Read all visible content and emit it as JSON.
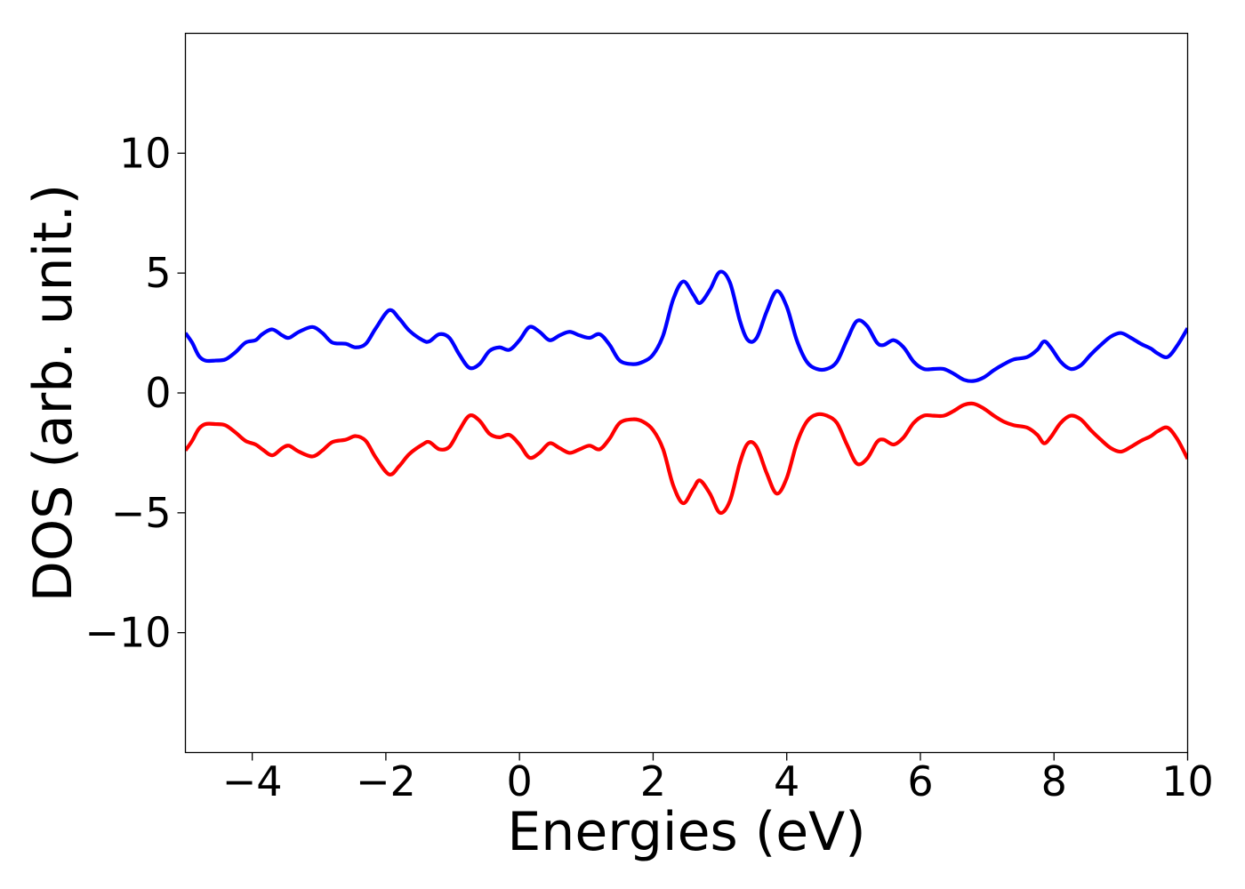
{
  "chart_data": {
    "type": "line",
    "title": "",
    "xlabel": "Energies (eV)",
    "ylabel": "DOS (arb. unit.)",
    "xlim": [
      -5,
      10
    ],
    "ylim": [
      -15,
      15
    ],
    "xticks": [
      -4,
      -2,
      0,
      2,
      4,
      6,
      8,
      10
    ],
    "yticks": [
      -10,
      -5,
      0,
      5,
      10
    ],
    "xtick_labels": [
      "−4",
      "−2",
      "0",
      "2",
      "4",
      "6",
      "8",
      "10"
    ],
    "ytick_labels": [
      "−10",
      "−5",
      "0",
      "5",
      "10"
    ],
    "grid": false,
    "legend": "none",
    "series": [
      {
        "color": "#0000ff",
        "points": [
          [
            -5.0,
            2.5
          ],
          [
            -4.9,
            2.1
          ],
          [
            -4.8,
            1.55
          ],
          [
            -4.7,
            1.35
          ],
          [
            -4.55,
            1.35
          ],
          [
            -4.4,
            1.4
          ],
          [
            -4.25,
            1.7
          ],
          [
            -4.1,
            2.1
          ],
          [
            -3.95,
            2.2
          ],
          [
            -3.85,
            2.45
          ],
          [
            -3.7,
            2.65
          ],
          [
            -3.55,
            2.4
          ],
          [
            -3.45,
            2.3
          ],
          [
            -3.3,
            2.55
          ],
          [
            -3.1,
            2.75
          ],
          [
            -2.95,
            2.5
          ],
          [
            -2.8,
            2.1
          ],
          [
            -2.6,
            2.05
          ],
          [
            -2.45,
            1.9
          ],
          [
            -2.3,
            2.05
          ],
          [
            -2.15,
            2.7
          ],
          [
            -1.95,
            3.45
          ],
          [
            -1.8,
            3.1
          ],
          [
            -1.65,
            2.6
          ],
          [
            -1.45,
            2.2
          ],
          [
            -1.35,
            2.15
          ],
          [
            -1.2,
            2.45
          ],
          [
            -1.05,
            2.3
          ],
          [
            -0.9,
            1.6
          ],
          [
            -0.75,
            1.05
          ],
          [
            -0.6,
            1.2
          ],
          [
            -0.45,
            1.75
          ],
          [
            -0.3,
            1.9
          ],
          [
            -0.15,
            1.8
          ],
          [
            0.0,
            2.2
          ],
          [
            0.15,
            2.75
          ],
          [
            0.3,
            2.55
          ],
          [
            0.45,
            2.2
          ],
          [
            0.6,
            2.4
          ],
          [
            0.75,
            2.55
          ],
          [
            0.9,
            2.4
          ],
          [
            1.05,
            2.3
          ],
          [
            1.2,
            2.45
          ],
          [
            1.35,
            2.0
          ],
          [
            1.5,
            1.35
          ],
          [
            1.7,
            1.2
          ],
          [
            1.85,
            1.3
          ],
          [
            2.0,
            1.6
          ],
          [
            2.15,
            2.4
          ],
          [
            2.3,
            3.9
          ],
          [
            2.45,
            4.65
          ],
          [
            2.6,
            4.1
          ],
          [
            2.7,
            3.75
          ],
          [
            2.85,
            4.3
          ],
          [
            3.0,
            5.05
          ],
          [
            3.15,
            4.6
          ],
          [
            3.3,
            3.0
          ],
          [
            3.42,
            2.2
          ],
          [
            3.55,
            2.3
          ],
          [
            3.7,
            3.4
          ],
          [
            3.85,
            4.25
          ],
          [
            4.0,
            3.6
          ],
          [
            4.15,
            2.2
          ],
          [
            4.3,
            1.3
          ],
          [
            4.45,
            1.0
          ],
          [
            4.6,
            1.0
          ],
          [
            4.75,
            1.3
          ],
          [
            4.9,
            2.2
          ],
          [
            5.05,
            3.0
          ],
          [
            5.2,
            2.8
          ],
          [
            5.35,
            2.1
          ],
          [
            5.45,
            2.0
          ],
          [
            5.6,
            2.2
          ],
          [
            5.75,
            1.9
          ],
          [
            5.9,
            1.3
          ],
          [
            6.05,
            1.0
          ],
          [
            6.2,
            1.0
          ],
          [
            6.35,
            1.0
          ],
          [
            6.5,
            0.8
          ],
          [
            6.65,
            0.55
          ],
          [
            6.8,
            0.5
          ],
          [
            6.95,
            0.65
          ],
          [
            7.1,
            0.95
          ],
          [
            7.25,
            1.2
          ],
          [
            7.4,
            1.4
          ],
          [
            7.6,
            1.5
          ],
          [
            7.75,
            1.8
          ],
          [
            7.85,
            2.15
          ],
          [
            7.95,
            1.9
          ],
          [
            8.1,
            1.3
          ],
          [
            8.25,
            1.0
          ],
          [
            8.4,
            1.15
          ],
          [
            8.55,
            1.6
          ],
          [
            8.7,
            2.0
          ],
          [
            8.85,
            2.35
          ],
          [
            9.0,
            2.5
          ],
          [
            9.15,
            2.3
          ],
          [
            9.3,
            2.05
          ],
          [
            9.45,
            1.85
          ],
          [
            9.55,
            1.65
          ],
          [
            9.7,
            1.5
          ],
          [
            9.85,
            2.0
          ],
          [
            10.0,
            2.7
          ]
        ]
      },
      {
        "color": "#ff0000",
        "points": [
          [
            -5.0,
            -2.4
          ],
          [
            -4.9,
            -2.0
          ],
          [
            -4.8,
            -1.5
          ],
          [
            -4.7,
            -1.3
          ],
          [
            -4.55,
            -1.3
          ],
          [
            -4.4,
            -1.35
          ],
          [
            -4.25,
            -1.65
          ],
          [
            -4.1,
            -2.0
          ],
          [
            -3.95,
            -2.15
          ],
          [
            -3.85,
            -2.35
          ],
          [
            -3.7,
            -2.6
          ],
          [
            -3.55,
            -2.3
          ],
          [
            -3.45,
            -2.2
          ],
          [
            -3.3,
            -2.45
          ],
          [
            -3.1,
            -2.65
          ],
          [
            -2.95,
            -2.4
          ],
          [
            -2.8,
            -2.05
          ],
          [
            -2.6,
            -1.95
          ],
          [
            -2.45,
            -1.8
          ],
          [
            -2.3,
            -2.0
          ],
          [
            -2.15,
            -2.7
          ],
          [
            -1.95,
            -3.4
          ],
          [
            -1.8,
            -3.05
          ],
          [
            -1.65,
            -2.55
          ],
          [
            -1.45,
            -2.15
          ],
          [
            -1.35,
            -2.05
          ],
          [
            -1.2,
            -2.35
          ],
          [
            -1.05,
            -2.25
          ],
          [
            -0.9,
            -1.55
          ],
          [
            -0.75,
            -0.95
          ],
          [
            -0.6,
            -1.15
          ],
          [
            -0.45,
            -1.7
          ],
          [
            -0.3,
            -1.85
          ],
          [
            -0.15,
            -1.75
          ],
          [
            0.0,
            -2.15
          ],
          [
            0.15,
            -2.7
          ],
          [
            0.3,
            -2.5
          ],
          [
            0.45,
            -2.1
          ],
          [
            0.6,
            -2.3
          ],
          [
            0.75,
            -2.5
          ],
          [
            0.9,
            -2.35
          ],
          [
            1.05,
            -2.2
          ],
          [
            1.2,
            -2.35
          ],
          [
            1.35,
            -1.9
          ],
          [
            1.5,
            -1.25
          ],
          [
            1.7,
            -1.1
          ],
          [
            1.85,
            -1.2
          ],
          [
            2.0,
            -1.55
          ],
          [
            2.15,
            -2.35
          ],
          [
            2.3,
            -3.85
          ],
          [
            2.45,
            -4.6
          ],
          [
            2.6,
            -4.0
          ],
          [
            2.7,
            -3.65
          ],
          [
            2.85,
            -4.2
          ],
          [
            3.0,
            -5.0
          ],
          [
            3.15,
            -4.5
          ],
          [
            3.3,
            -2.9
          ],
          [
            3.42,
            -2.1
          ],
          [
            3.55,
            -2.25
          ],
          [
            3.7,
            -3.35
          ],
          [
            3.85,
            -4.2
          ],
          [
            4.0,
            -3.55
          ],
          [
            4.15,
            -2.1
          ],
          [
            4.3,
            -1.2
          ],
          [
            4.45,
            -0.9
          ],
          [
            4.6,
            -0.95
          ],
          [
            4.75,
            -1.25
          ],
          [
            4.9,
            -2.15
          ],
          [
            5.05,
            -2.95
          ],
          [
            5.2,
            -2.75
          ],
          [
            5.35,
            -2.05
          ],
          [
            5.45,
            -1.95
          ],
          [
            5.6,
            -2.15
          ],
          [
            5.75,
            -1.85
          ],
          [
            5.9,
            -1.25
          ],
          [
            6.05,
            -0.95
          ],
          [
            6.2,
            -0.95
          ],
          [
            6.35,
            -0.95
          ],
          [
            6.5,
            -0.75
          ],
          [
            6.65,
            -0.5
          ],
          [
            6.8,
            -0.45
          ],
          [
            6.95,
            -0.65
          ],
          [
            7.1,
            -0.95
          ],
          [
            7.25,
            -1.2
          ],
          [
            7.4,
            -1.35
          ],
          [
            7.6,
            -1.45
          ],
          [
            7.75,
            -1.75
          ],
          [
            7.85,
            -2.1
          ],
          [
            7.95,
            -1.85
          ],
          [
            8.1,
            -1.25
          ],
          [
            8.25,
            -0.95
          ],
          [
            8.4,
            -1.1
          ],
          [
            8.55,
            -1.55
          ],
          [
            8.7,
            -1.95
          ],
          [
            8.85,
            -2.3
          ],
          [
            9.0,
            -2.45
          ],
          [
            9.15,
            -2.25
          ],
          [
            9.3,
            -2.0
          ],
          [
            9.45,
            -1.8
          ],
          [
            9.55,
            -1.6
          ],
          [
            9.7,
            -1.45
          ],
          [
            9.85,
            -1.95
          ],
          [
            10.0,
            -2.75
          ]
        ]
      }
    ]
  }
}
